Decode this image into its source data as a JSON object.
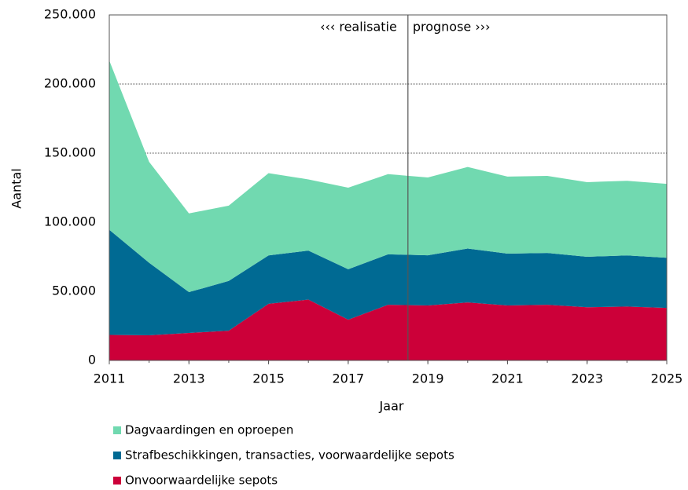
{
  "chart_data": {
    "type": "stacked_area",
    "x": [
      2011,
      2012,
      2013,
      2014,
      2015,
      2016,
      2017,
      2018,
      2019,
      2020,
      2021,
      2022,
      2023,
      2024,
      2025
    ],
    "series": [
      {
        "name": "Onvoorwaardelijke sepots",
        "color": "#cc0039",
        "values": [
          18500,
          18200,
          19900,
          21500,
          41000,
          44000,
          29500,
          40300,
          39800,
          42000,
          39800,
          40300,
          38500,
          39000,
          38000
        ]
      },
      {
        "name": "Strafbeschikkingen, transacties, voorwaardelijke  sepots",
        "color": "#006a93",
        "values": [
          76000,
          52500,
          29500,
          36000,
          35000,
          35500,
          36500,
          36500,
          36300,
          39000,
          37500,
          37500,
          36500,
          37000,
          36300
        ]
      },
      {
        "name": "Dagvaardingen en oproepen",
        "color": "#71d9b0",
        "values": [
          122500,
          73000,
          57000,
          54500,
          59500,
          51500,
          59000,
          58000,
          56300,
          59000,
          55700,
          55700,
          54000,
          54000,
          53500
        ]
      }
    ],
    "xlabel": "Jaar",
    "ylabel": "Aantal",
    "xlim": [
      2011,
      2025
    ],
    "xticks": [
      2011,
      2013,
      2015,
      2017,
      2019,
      2021,
      2023,
      2025
    ],
    "ylim": [
      0,
      250000
    ],
    "yticks": [
      0,
      {
        "value": 50000,
        "label": "50.000"
      },
      {
        "value": 100000,
        "label": "100.000"
      },
      {
        "value": 150000,
        "label": "150.000"
      },
      {
        "value": 200000,
        "label": "200.000"
      },
      {
        "value": 250000,
        "label": "250.000"
      }
    ],
    "grid": true,
    "legend": "bottom",
    "divider": 2018.5,
    "annotations": [
      "‹‹‹ realisatie",
      "prognose ›››"
    ]
  }
}
